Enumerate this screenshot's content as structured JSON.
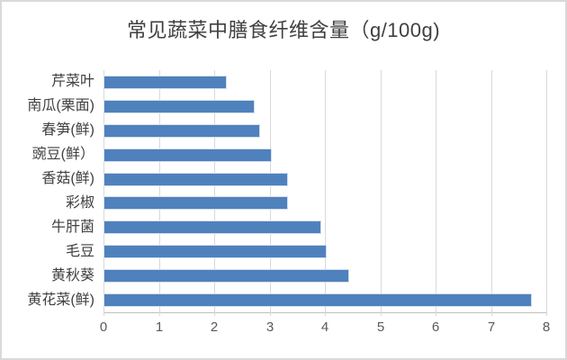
{
  "chart_data": {
    "type": "bar",
    "orientation": "horizontal",
    "title": "常见蔬菜中膳食纤维含量（g/100g)",
    "categories_order": "top-to-bottom",
    "categories": [
      "芹菜叶",
      "南瓜(栗面)",
      "春笋(鲜)",
      "豌豆(鲜）",
      "香菇(鲜)",
      "彩椒",
      "牛肝菌",
      "毛豆",
      "黄秋葵",
      "黄花菜(鲜)"
    ],
    "values": [
      2.2,
      2.7,
      2.8,
      3.0,
      3.3,
      3.3,
      3.9,
      4.0,
      4.4,
      7.7
    ],
    "xlabel": "",
    "ylabel": "",
    "xlim": [
      0,
      8
    ],
    "x_ticks": [
      "0",
      "1",
      "2",
      "3",
      "4",
      "5",
      "6",
      "7",
      "8"
    ],
    "grid": "vertical-on",
    "legend": "none",
    "colors": {
      "bar_fill": "#4f81bd",
      "bar_border": "#d3dfef",
      "gridline": "#d9d9d9",
      "axis_line": "#bfbfbf",
      "title_text": "#404040",
      "category_text": "#404040",
      "tick_text": "#595959",
      "chart_border": "#d9d9d9",
      "background": "#ffffff"
    }
  }
}
